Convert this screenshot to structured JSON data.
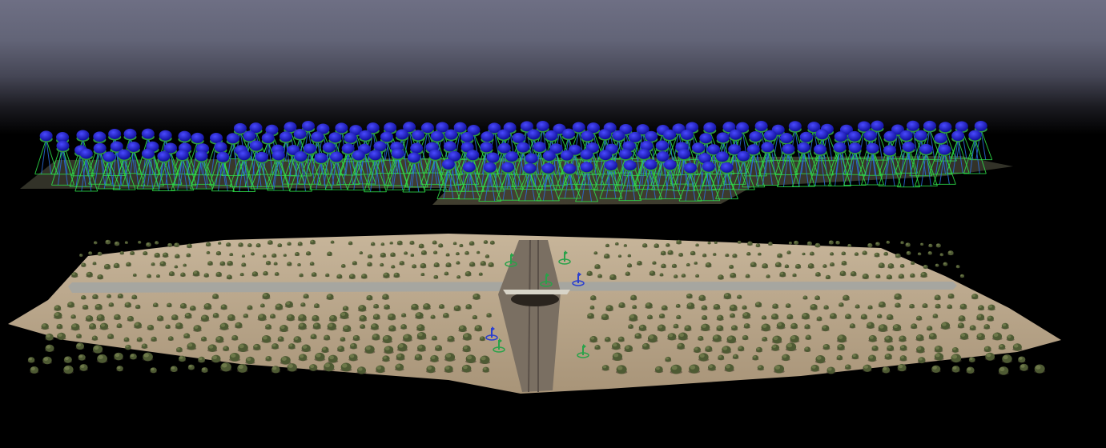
{
  "viewport": {
    "label": "",
    "background_top": "#6e6f84",
    "background_bottom": "#000000"
  },
  "cameras": {
    "sphere_color": "#1f1fc8",
    "cap_color": "#2f9a3a",
    "frustum_color_a": "#2ee24a",
    "frustum_color_b": "#2a6ee0",
    "ground_patch_color": "#6b6a52"
  },
  "point_cloud": {
    "soil_color": "#b7a58a",
    "tree_color": "#4e5a33",
    "road_color": "#9a9a94",
    "rail_color": "#7a6e60"
  },
  "control_points": {
    "color": "#2aa24a",
    "check_color": "#2a3fd0",
    "icon": "ground-control-point-icon"
  }
}
